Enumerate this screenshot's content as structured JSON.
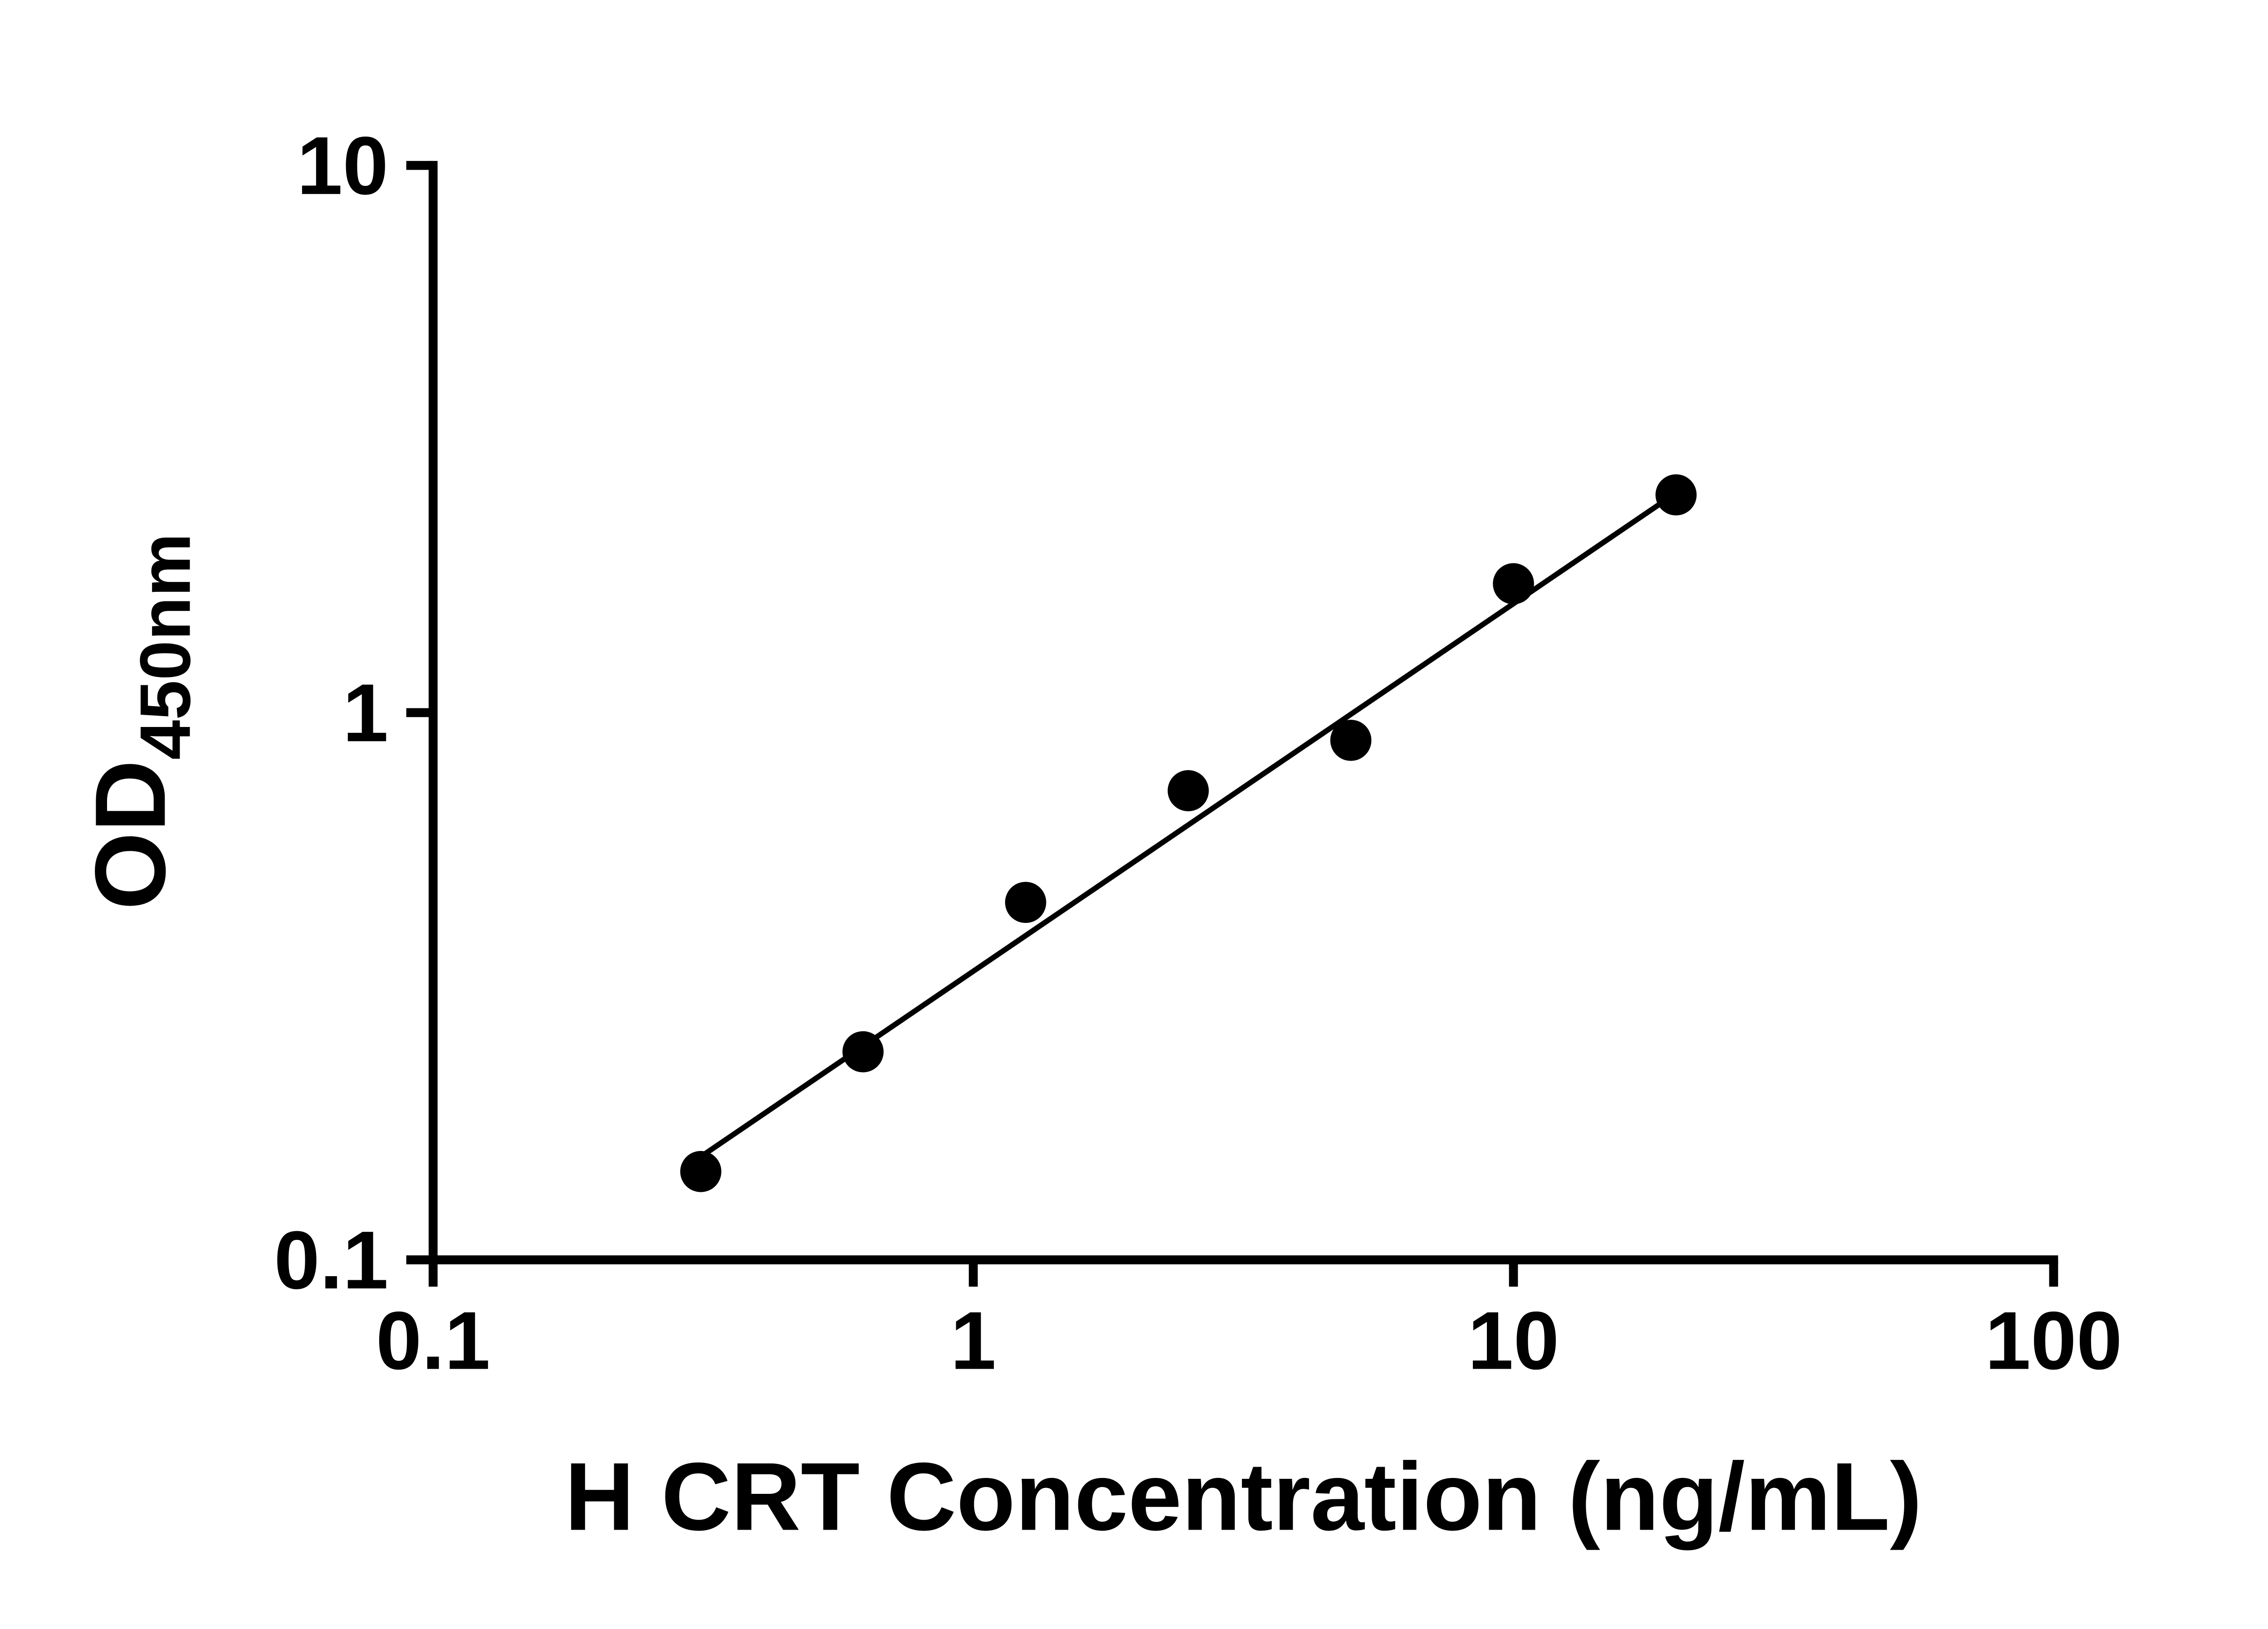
{
  "chart_data": {
    "type": "scatter",
    "xlabel": "H CRT Concentration (ng/mL)",
    "ylabel_main": "OD",
    "ylabel_sub": "450nm",
    "x_scale": "log",
    "y_scale": "log",
    "xlim": [
      0.1,
      100
    ],
    "ylim": [
      0.1,
      10
    ],
    "x_ticks": [
      0.1,
      1,
      10,
      100
    ],
    "x_tick_labels": [
      "0.1",
      "1",
      "10",
      "100"
    ],
    "y_ticks": [
      0.1,
      1,
      10
    ],
    "y_tick_labels": [
      "0.1",
      "1",
      "10"
    ],
    "points": [
      {
        "x": 0.313,
        "y": 0.145
      },
      {
        "x": 0.625,
        "y": 0.24
      },
      {
        "x": 1.25,
        "y": 0.45
      },
      {
        "x": 2.5,
        "y": 0.72
      },
      {
        "x": 5,
        "y": 0.89
      },
      {
        "x": 10,
        "y": 1.72
      },
      {
        "x": 20,
        "y": 2.5
      }
    ],
    "trendline": {
      "x1": 0.3,
      "y1": 0.15,
      "x2": 20,
      "y2": 2.52
    },
    "grid": false,
    "legend": null,
    "marker_color": "#000000",
    "line_color": "#000000",
    "axis_color": "#000000",
    "background": "#ffffff"
  }
}
